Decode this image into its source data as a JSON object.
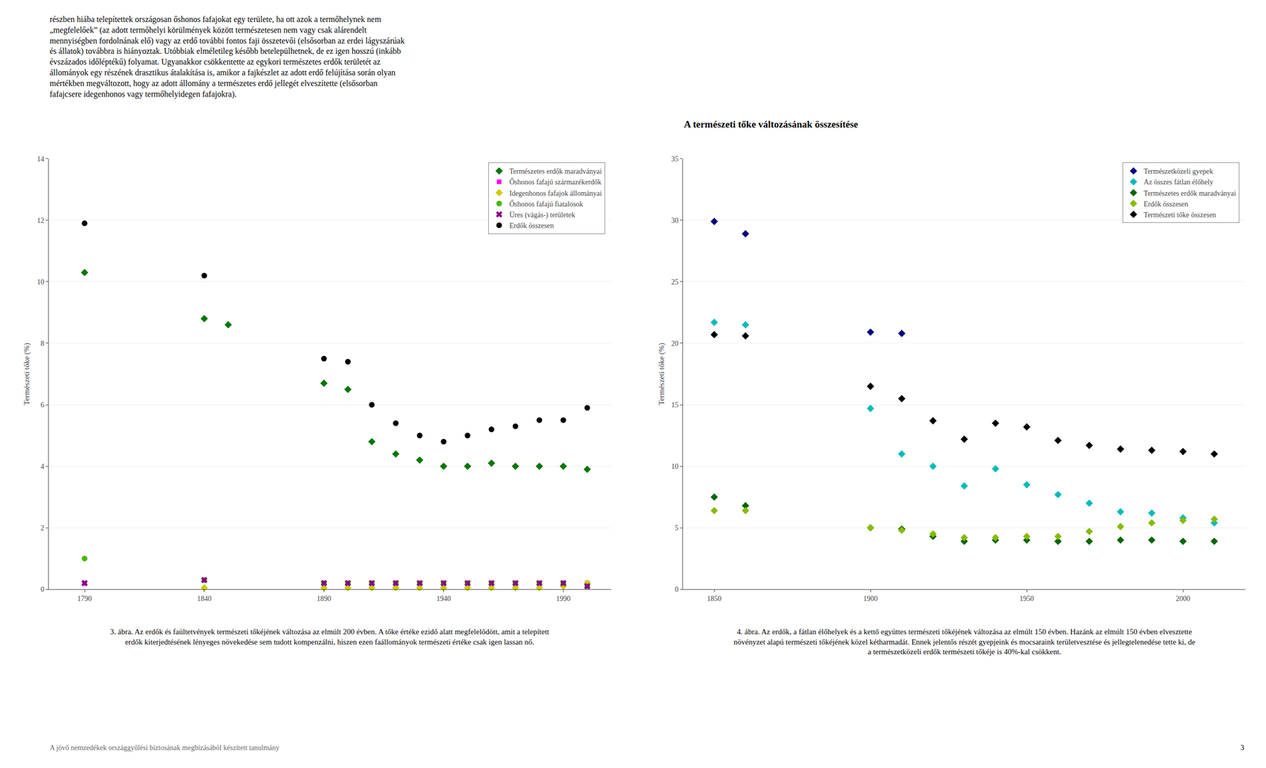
{
  "text_top_lines": [
    "részben hiába telepítettek országosan őshonos fafajokat egy területe, ha ott azok a termőhelynek nem",
    "„megfelelőek” (az adott termőhelyi körülmények között természetesen nem vagy csak alárendelt",
    "mennyiségben fordolnának elő) vagy az erdő további fontos faji összetevői (elsősorban az erdei lágyszárúak",
    "és állatok) továbbra is hiányoztak. Utóbbiak elméletileg később betelepülhetnek, de ez igen hosszú (inkább",
    "évszázados időléptékű) folyamat. Ugyanakkor csökkentette az egykori természetes erdők területét az",
    "állományok egy részének drasztikus átalakítása is, amikor a fajkészlet az adott erdő felújítása során olyan",
    "mértékben megváltozott, hogy az adott állomány a természetes erdő jellegét elveszítette (elsősorban",
    "fafajcsere idegenhonos vagy termőhelyidegen fafajokra)."
  ],
  "section_title": "A természeti tőke változásának összesítése",
  "footer": "A jövő nemzedékek országgyűlési biztosának megbízásából készített tanulmány",
  "page_number": "3",
  "chart_data": [
    {
      "type": "scatter",
      "ylabel": "Természeti tőke (%)",
      "xlim": [
        1775,
        2010
      ],
      "ylim": [
        0,
        14
      ],
      "xticks": [
        1790,
        1840,
        1890,
        1940,
        1990
      ],
      "yticks": [
        0,
        2,
        4,
        6,
        8,
        10,
        12,
        14
      ],
      "grid": "y",
      "legend": "upper right",
      "caption": "3. ábra. Az erdők és faültetvények természeti tőkéjének változása az elmúlt 200 évben. A tőke értéke ezidő alatt megfelelődött, amit a telepített erdők kiterjedtésének lényeges növekedése sem tudott kompenzálni, hiszen ezen faállományok természeti értéke csak igen lassan nő.",
      "series": [
        {
          "name": "Természetes erdők maradványai",
          "color": "#007700",
          "marker": "diamond",
          "x": [
            1790,
            1840,
            1850,
            1890,
            1900,
            1910,
            1920,
            1930,
            1940,
            1950,
            1960,
            1970,
            1980,
            1990,
            2000
          ],
          "values": [
            10.3,
            8.8,
            8.6,
            6.7,
            6.5,
            4.8,
            4.4,
            4.2,
            4.0,
            4.0,
            4.1,
            4.0,
            4.0,
            4.0,
            3.9
          ]
        },
        {
          "name": "Őshonos fafajú származékerdők",
          "color": "#FF00FF",
          "marker": "square",
          "x": [
            1790,
            1840,
            1890,
            1900,
            1910,
            1920,
            1930,
            1940,
            1950,
            1960,
            1970,
            1980,
            1990,
            2000
          ],
          "values": [
            0.2,
            0.3,
            0.2,
            0.2,
            0.2,
            0.2,
            0.2,
            0.2,
            0.2,
            0.2,
            0.2,
            0.2,
            0.2,
            0.2
          ]
        },
        {
          "name": "Idegenhonos fafajok állományai",
          "color": "#CCCC00",
          "marker": "diamond",
          "x": [
            1840,
            1890,
            1900,
            1910,
            1920,
            1930,
            1940,
            1950,
            1960,
            1970,
            1980,
            1990,
            2000
          ],
          "values": [
            0.05,
            0.05,
            0.05,
            0.05,
            0.05,
            0.05,
            0.05,
            0.05,
            0.05,
            0.05,
            0.05,
            0.1,
            0.2
          ]
        },
        {
          "name": "Őshonos fafajú fiatalosok",
          "color": "#44BB00",
          "marker": "circle",
          "x": [
            1790,
            1840,
            1890,
            1900,
            1910,
            1920,
            1930,
            1940,
            1950,
            1960,
            1970,
            1980,
            1990,
            2000
          ],
          "values": [
            1.0,
            0.3,
            0.2,
            0.2,
            0.2,
            0.2,
            0.2,
            0.2,
            0.2,
            0.2,
            0.2,
            0.2,
            0.2,
            0.1
          ]
        },
        {
          "name": "Üres (vágás-) területek",
          "color": "#880088",
          "marker": "x",
          "x": [
            1790,
            1840,
            1890,
            1900,
            1910,
            1920,
            1930,
            1940,
            1950,
            1960,
            1970,
            1980,
            1990,
            2000
          ],
          "values": [
            0.2,
            0.3,
            0.2,
            0.2,
            0.2,
            0.2,
            0.2,
            0.2,
            0.2,
            0.2,
            0.2,
            0.2,
            0.2,
            0.1
          ]
        },
        {
          "name": "Erdők összesen",
          "color": "#000000",
          "marker": "circle",
          "x": [
            1790,
            1840,
            1890,
            1900,
            1910,
            1920,
            1930,
            1940,
            1950,
            1960,
            1970,
            1980,
            1990,
            2000
          ],
          "values": [
            11.9,
            10.2,
            7.5,
            7.4,
            6.0,
            5.4,
            5.0,
            4.8,
            5.0,
            5.2,
            5.3,
            5.5,
            5.5,
            5.9
          ]
        }
      ]
    },
    {
      "type": "scatter",
      "ylabel": "Természeti tőke (%)",
      "xlim": [
        1840,
        2020
      ],
      "ylim": [
        0,
        35
      ],
      "xticks": [
        1850,
        1900,
        1950,
        2000
      ],
      "yticks": [
        0,
        5,
        10,
        15,
        20,
        25,
        30,
        35
      ],
      "grid": "y",
      "legend": "upper right",
      "caption": "4. ábra. Az erdők, a fátlan élőhelyek és a kettő együttes természeti tőkéjének változása az elmúlt 150 évben. Hazánk az elmúlt 150 évben elvesztette növényzet alapú természeti tőkéjének közel kétharmadát. Ennek jelentős részét gyepjeink és mocsaraink területvesztése és jellegtelenedése tette ki, de a természetközeli erdők természeti tőkéje is 40%-kal csökkent.",
      "series": [
        {
          "name": "Természetközeli gyepek",
          "color": "#000080",
          "marker": "diamond",
          "x": [
            1850,
            1860,
            1900,
            1910
          ],
          "values": [
            29.9,
            28.9,
            20.9,
            20.8
          ]
        },
        {
          "name": "Az összes fátlan élőhely",
          "color": "#00BBBB",
          "marker": "diamond",
          "x": [
            1850,
            1860,
            1900,
            1910,
            1920,
            1930,
            1940,
            1950,
            1960,
            1970,
            1980,
            1990,
            2000,
            2010
          ],
          "values": [
            21.7,
            21.5,
            14.7,
            11.0,
            10.0,
            8.4,
            9.8,
            8.5,
            7.7,
            7.0,
            6.3,
            6.2,
            5.8,
            5.4
          ]
        },
        {
          "name": "Természetes erdők maradványai",
          "color": "#006600",
          "marker": "diamond",
          "x": [
            1850,
            1860,
            1900,
            1910,
            1920,
            1930,
            1940,
            1950,
            1960,
            1970,
            1980,
            1990,
            2000,
            2010
          ],
          "values": [
            7.5,
            6.8,
            5.0,
            4.9,
            4.3,
            3.9,
            4.0,
            4.0,
            3.9,
            3.9,
            4.0,
            4.0,
            3.9,
            3.9
          ]
        },
        {
          "name": "Erdők összesen",
          "color": "#88BB00",
          "marker": "diamond",
          "x": [
            1850,
            1860,
            1900,
            1910,
            1920,
            1930,
            1940,
            1950,
            1960,
            1970,
            1980,
            1990,
            2000,
            2010
          ],
          "values": [
            6.4,
            6.4,
            5.0,
            4.8,
            4.5,
            4.2,
            4.2,
            4.3,
            4.3,
            4.7,
            5.1,
            5.4,
            5.6,
            5.7
          ]
        },
        {
          "name": "Természeti tőke összesen",
          "color": "#000000",
          "marker": "diamond",
          "x": [
            1850,
            1860,
            1900,
            1910,
            1920,
            1930,
            1940,
            1950,
            1960,
            1970,
            1980,
            1990,
            2000,
            2010
          ],
          "values": [
            20.7,
            20.6,
            16.5,
            15.5,
            13.7,
            12.2,
            13.5,
            13.2,
            12.1,
            11.7,
            11.4,
            11.3,
            11.2,
            11.0
          ]
        }
      ]
    }
  ]
}
